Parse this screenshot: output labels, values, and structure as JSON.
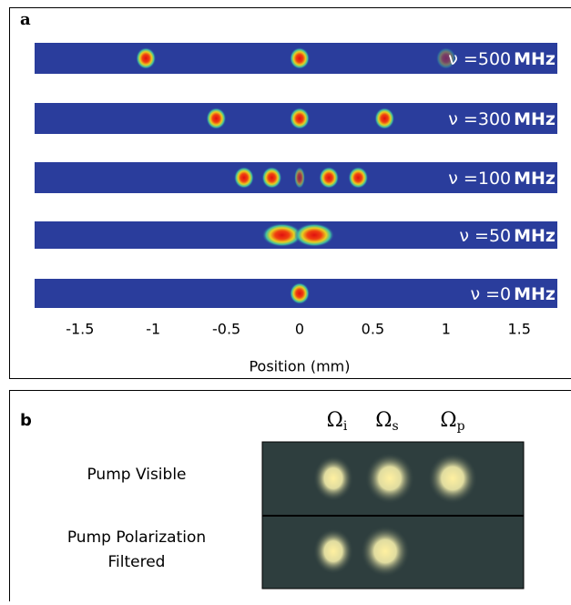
{
  "panel_a": {
    "label": "a",
    "xlabel": "Position (mm)",
    "xlim": [
      -1.81,
      1.76
    ],
    "xticks": [
      -1.5,
      -1,
      -0.5,
      0,
      0.5,
      1,
      1.5
    ],
    "strips": [
      {
        "prefix": "ν =",
        "value": 500,
        "unit": "MHz",
        "spots": [
          -1.05,
          0,
          1.0
        ]
      },
      {
        "prefix": "ν =",
        "value": 300,
        "unit": "MHz",
        "spots": [
          -0.57,
          0,
          0.58
        ]
      },
      {
        "prefix": "ν =",
        "value": 100,
        "unit": "MHz",
        "spots": [
          -0.38,
          -0.19,
          0,
          0.2,
          0.4
        ]
      },
      {
        "prefix": "ν =",
        "value": 50,
        "unit": "MHz",
        "spots": [
          -0.12,
          0.1
        ]
      },
      {
        "prefix": "ν =",
        "value": 0,
        "unit": "MHz",
        "spots": [
          0
        ]
      }
    ]
  },
  "panel_b": {
    "label": "b",
    "omega": "Ω",
    "subscripts": [
      "i",
      "s",
      "p"
    ],
    "row_labels": [
      [
        "Pump Visible"
      ],
      [
        "Pump Polarization",
        "Filtered"
      ]
    ]
  }
}
